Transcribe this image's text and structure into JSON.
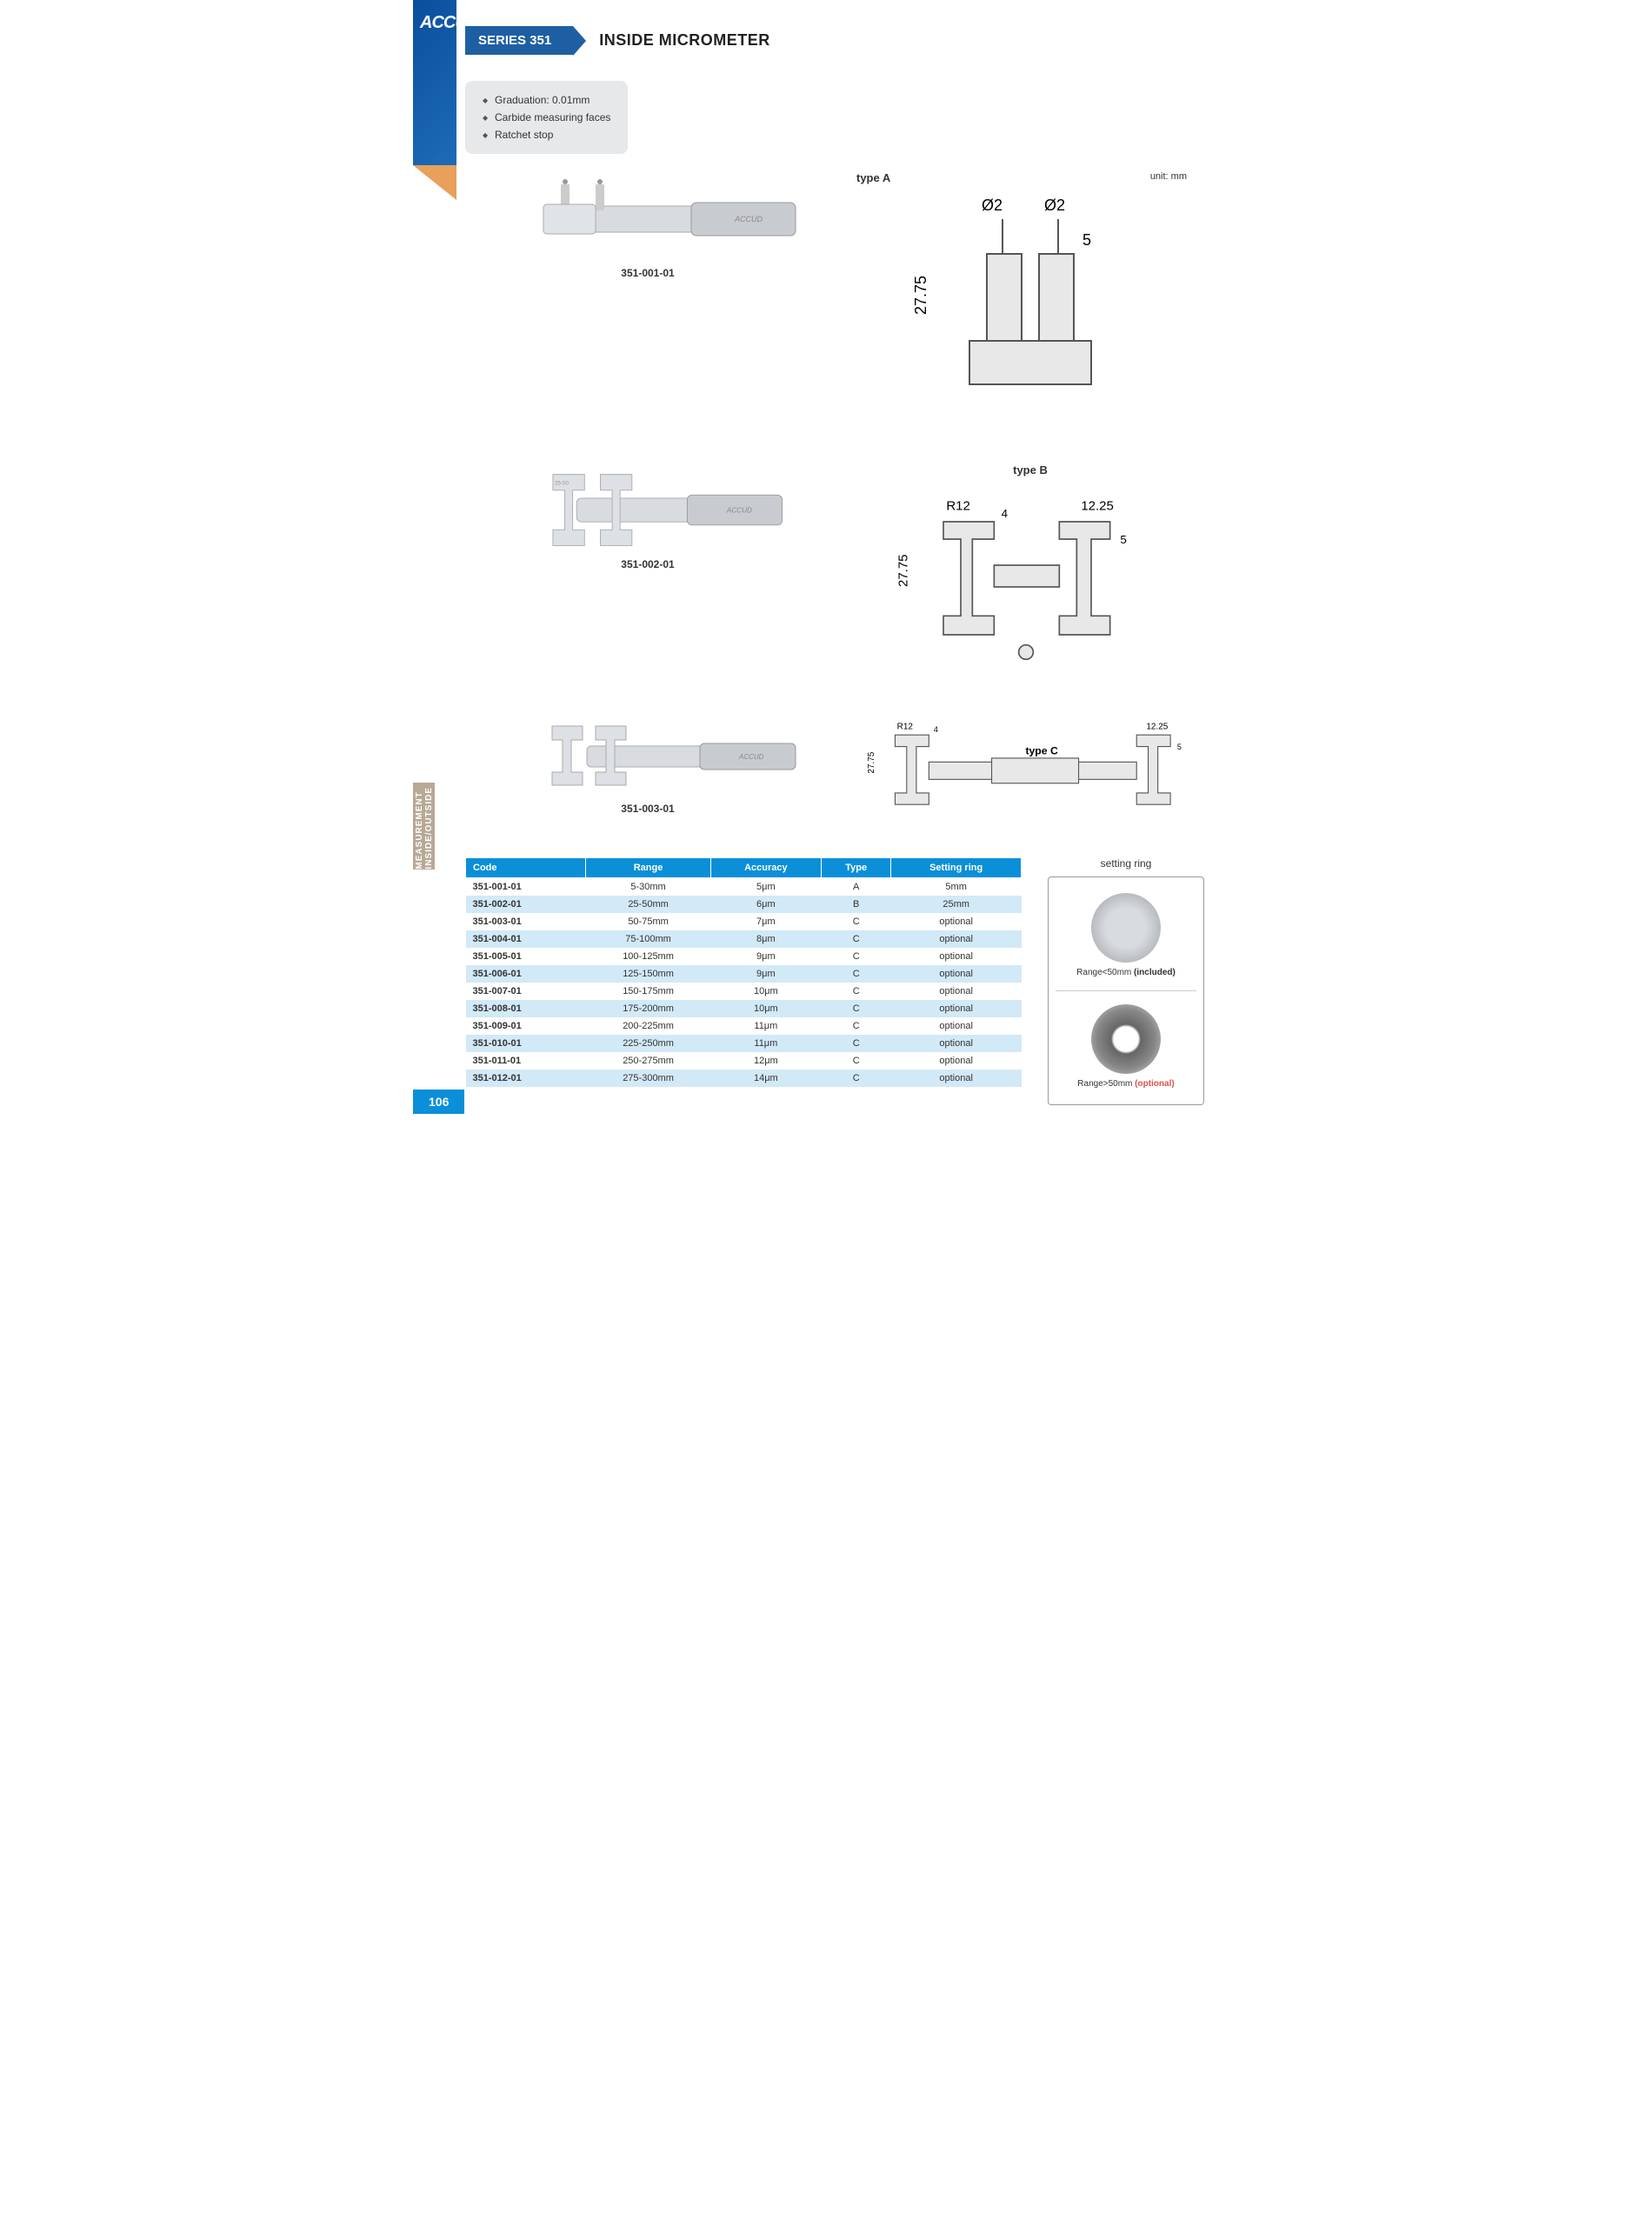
{
  "brand": "ACCUD",
  "category_label": "INSIDE/OUTSIDE MEASUREMENT",
  "header": {
    "series": "SERIES 351",
    "title": "INSIDE MICROMETER"
  },
  "features": [
    "Graduation: 0.01mm",
    "Carbide measuring faces",
    "Ratchet stop"
  ],
  "unit_label": "unit: mm",
  "products": [
    {
      "code": "351-001-01",
      "type_label": "type A",
      "dims": {
        "d": "Ø2",
        "h": "27.75",
        "t": "5"
      }
    },
    {
      "code": "351-002-01",
      "type_label": "type B",
      "dims": {
        "r": "R12",
        "w": "12.25",
        "h": "27.75",
        "t": "4",
        "t2": "5"
      }
    },
    {
      "code": "351-003-01",
      "type_label": "type C",
      "dims": {
        "r": "R12",
        "w": "12.25",
        "h": "27.75",
        "t": "4",
        "t2": "5"
      }
    }
  ],
  "table": {
    "columns": [
      "Code",
      "Range",
      "Accuracy",
      "Type",
      "Setting ring"
    ],
    "rows": [
      [
        "351-001-01",
        "5-30mm",
        "5μm",
        "A",
        "5mm"
      ],
      [
        "351-002-01",
        "25-50mm",
        "6μm",
        "B",
        "25mm"
      ],
      [
        "351-003-01",
        "50-75mm",
        "7μm",
        "C",
        "optional"
      ],
      [
        "351-004-01",
        "75-100mm",
        "8μm",
        "C",
        "optional"
      ],
      [
        "351-005-01",
        "100-125mm",
        "9μm",
        "C",
        "optional"
      ],
      [
        "351-006-01",
        "125-150mm",
        "9μm",
        "C",
        "optional"
      ],
      [
        "351-007-01",
        "150-175mm",
        "10μm",
        "C",
        "optional"
      ],
      [
        "351-008-01",
        "175-200mm",
        "10μm",
        "C",
        "optional"
      ],
      [
        "351-009-01",
        "200-225mm",
        "11μm",
        "C",
        "optional"
      ],
      [
        "351-010-01",
        "225-250mm",
        "11μm",
        "C",
        "optional"
      ],
      [
        "351-011-01",
        "250-275mm",
        "12μm",
        "C",
        "optional"
      ],
      [
        "351-012-01",
        "275-300mm",
        "14μm",
        "C",
        "optional"
      ]
    ],
    "colors": {
      "header_bg": "#0a8fd8",
      "header_text": "#ffffff",
      "row_alt_bg": "#d2e9f7"
    }
  },
  "setting_ring": {
    "title": "setting ring",
    "items": [
      {
        "range_text": "Range<50mm",
        "suffix": " (included)",
        "suffix_class": "incl"
      },
      {
        "range_text": "Range>50mm",
        "suffix": " (optional)",
        "suffix_class": "opt"
      }
    ]
  },
  "page_number": "106"
}
